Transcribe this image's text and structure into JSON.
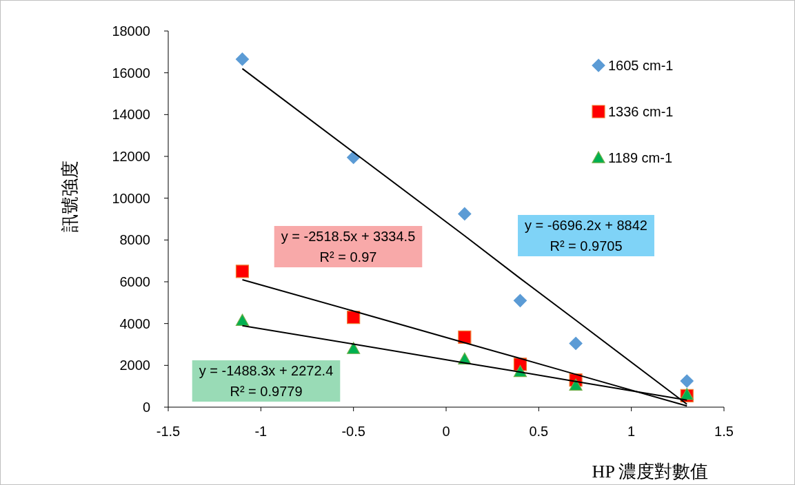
{
  "chart_data": {
    "type": "scatter",
    "xlabel": "HP 濃度對數值",
    "ylabel": "訊號強度",
    "x": [
      -1.1,
      -0.5,
      0.1,
      0.4,
      0.7,
      1.3
    ],
    "series": [
      {
        "name": "1605 cm-1",
        "color": "#5b9bd5",
        "marker": "diamond",
        "values": [
          16650,
          11950,
          9250,
          5100,
          3050,
          1250
        ]
      },
      {
        "name": "1336 cm-1",
        "color": "#ff0000",
        "marker": "square",
        "values": [
          6500,
          4300,
          3350,
          2050,
          1300,
          550
        ]
      },
      {
        "name": "1189 cm-1",
        "color": "#00b050",
        "marker": "triangle",
        "values": [
          4150,
          2800,
          2300,
          1700,
          1050,
          600
        ]
      },
      {
        "type": "line",
        "color": "#000000",
        "values": [
          16200,
          12200,
          8200,
          6160,
          4160,
          140
        ]
      },
      {
        "type": "line",
        "color": "#000000",
        "values": [
          6100,
          4600,
          3080,
          2330,
          1570,
          60
        ]
      },
      {
        "type": "line",
        "color": "#000000",
        "values": [
          3900,
          3020,
          2120,
          1680,
          1230,
          340
        ]
      }
    ],
    "xlim": [
      -1.5,
      1.5
    ],
    "xticks": [
      -1.5,
      -1,
      -0.5,
      0,
      0.5,
      1,
      1.5
    ],
    "ylim": [
      0,
      18000
    ],
    "yticks": [
      0,
      2000,
      4000,
      6000,
      8000,
      10000,
      12000,
      14000,
      16000,
      18000
    ],
    "grid": false,
    "legend": "top right",
    "annotations": [
      "y = -6696.2x + 8842\nR² = 0.9705",
      "y = -2518.5x + 3334.5\nR² = 0.97",
      "y = -1488.3x + 2272.4\nR² = 0.9779"
    ]
  }
}
